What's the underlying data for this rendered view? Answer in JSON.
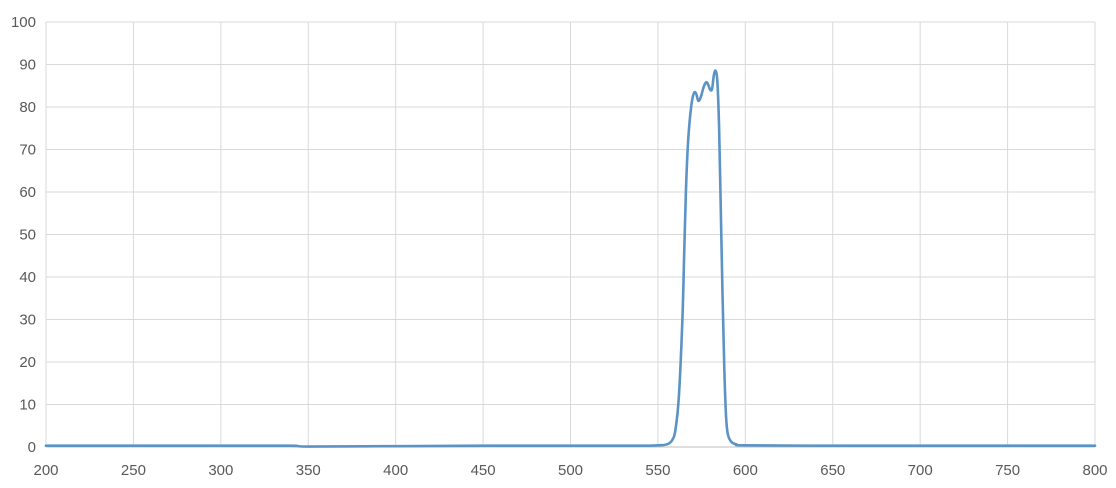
{
  "chart_data": {
    "type": "line",
    "title": "",
    "xlabel": "",
    "ylabel": "",
    "xlim": [
      200,
      800
    ],
    "ylim": [
      0,
      100
    ],
    "x_ticks": [
      "200",
      "250",
      "300",
      "350",
      "400",
      "450",
      "500",
      "550",
      "600",
      "650",
      "700",
      "750",
      "800"
    ],
    "y_ticks": [
      "0",
      "10",
      "20",
      "30",
      "40",
      "50",
      "60",
      "70",
      "80",
      "90",
      "100"
    ],
    "grid": true,
    "legend": "none",
    "series": [
      {
        "color": "#5b93c5",
        "x": [
          200,
          250,
          300,
          340,
          350,
          400,
          450,
          500,
          540,
          550,
          555,
          558,
          560,
          562,
          564,
          565,
          566,
          567,
          568,
          569,
          570,
          571,
          572,
          573,
          574,
          575,
          576,
          577,
          578,
          579,
          580,
          581,
          582,
          583,
          584,
          585,
          586,
          587,
          588,
          589,
          590,
          592,
          595,
          600,
          650,
          700,
          750,
          800
        ],
        "y": [
          0.3,
          0.3,
          0.3,
          0.3,
          0.1,
          0.2,
          0.3,
          0.3,
          0.3,
          0.4,
          0.6,
          1.5,
          4,
          12,
          30,
          45,
          60,
          70,
          76,
          80,
          82.5,
          83.5,
          83,
          81.5,
          81.8,
          83,
          84.5,
          85.5,
          85.8,
          85,
          84,
          84.3,
          87.5,
          88.5,
          86,
          75,
          55,
          35,
          18,
          7,
          3,
          1.2,
          0.6,
          0.4,
          0.3,
          0.3,
          0.3,
          0.3
        ]
      }
    ]
  }
}
